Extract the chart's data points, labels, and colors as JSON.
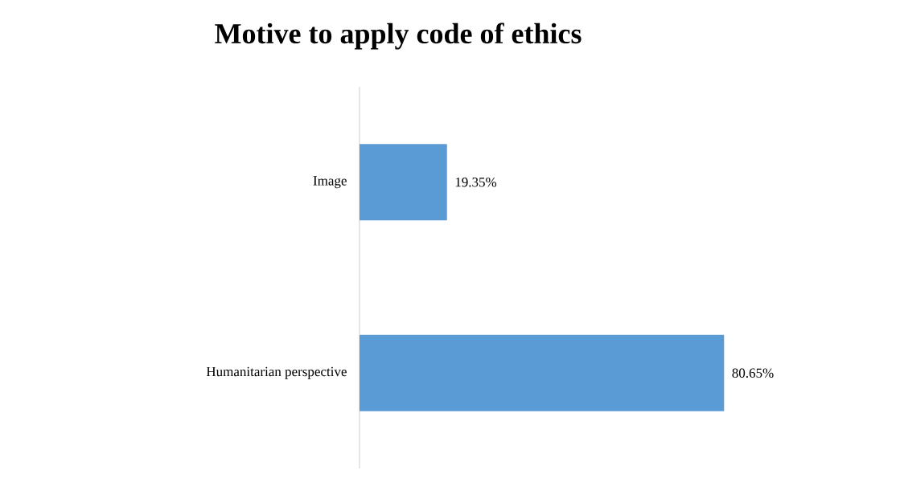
{
  "chart_data": {
    "type": "bar",
    "orientation": "horizontal",
    "title": "Motive to apply code of ethics",
    "categories": [
      "Image",
      "Humanitarian perspective"
    ],
    "values": [
      19.35,
      80.65
    ],
    "color": "#5b9bd5",
    "value_labels": [
      "19.35%",
      "80.65%"
    ]
  }
}
